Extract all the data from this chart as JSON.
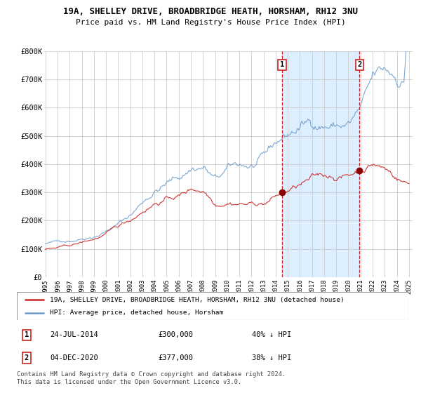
{
  "title": "19A, SHELLEY DRIVE, BROADBRIDGE HEATH, HORSHAM, RH12 3NU",
  "subtitle": "Price paid vs. HM Land Registry's House Price Index (HPI)",
  "bg_color": "#ffffff",
  "plot_bg_color": "#ffffff",
  "grid_color": "#cccccc",
  "line1_color": "#cc2222",
  "line2_color": "#6699cc",
  "shade_color": "#ddeeff",
  "legend1": "19A, SHELLEY DRIVE, BROADBRIDGE HEATH, HORSHAM, RH12 3NU (detached house)",
  "legend2": "HPI: Average price, detached house, Horsham",
  "marker1_date": 2014.54,
  "marker1_value": 300000,
  "marker1_label": "1",
  "marker2_date": 2020.92,
  "marker2_value": 377000,
  "marker2_label": "2",
  "annotation1": [
    "1",
    "24-JUL-2014",
    "£300,000",
    "40% ↓ HPI"
  ],
  "annotation2": [
    "2",
    "04-DEC-2020",
    "£377,000",
    "38% ↓ HPI"
  ],
  "footnote": "Contains HM Land Registry data © Crown copyright and database right 2024.\nThis data is licensed under the Open Government Licence v3.0.",
  "ylim": [
    0,
    800000
  ],
  "yticks": [
    0,
    100000,
    200000,
    300000,
    400000,
    500000,
    600000,
    700000,
    800000
  ],
  "ytick_labels": [
    "£0",
    "£100K",
    "£200K",
    "£300K",
    "£400K",
    "£500K",
    "£600K",
    "£700K",
    "£800K"
  ],
  "xlim_start": 1994.9,
  "xlim_end": 2025.3
}
